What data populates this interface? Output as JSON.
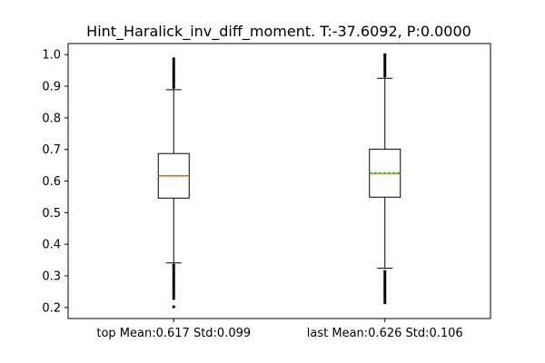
{
  "chart_data": {
    "type": "boxplot",
    "title": "Hint_Haralick_inv_diff_moment. T:-37.6092, P:0.0000",
    "xlabel": "",
    "ylabel": "",
    "ylim": [
      0.165,
      1.035
    ],
    "yticks": [
      0.2,
      0.3,
      0.4,
      0.5,
      0.6,
      0.7,
      0.8,
      0.9,
      1.0
    ],
    "ytick_labels": [
      "0.2",
      "0.3",
      "0.4",
      "0.5",
      "0.6",
      "0.7",
      "0.8",
      "0.9",
      "1.0"
    ],
    "grid": false,
    "legend": false,
    "colors": {
      "box": "#000000",
      "median": "#ff7f0e",
      "mean": "#2ca02c",
      "outlier": "#000000"
    },
    "categories": [
      "top Mean:0.617 Std:0.099",
      "last Mean:0.626 Std:0.106"
    ],
    "boxes": [
      {
        "q1": 0.546,
        "median": 0.616,
        "mean": 0.617,
        "q3": 0.687,
        "whisker_low": 0.341,
        "whisker_high": 0.889,
        "outliers": [
          0.202,
          0.228,
          0.236,
          0.243,
          0.25,
          0.257,
          0.264,
          0.271,
          0.278,
          0.285,
          0.292,
          0.299,
          0.306,
          0.313,
          0.32,
          0.327,
          0.334,
          0.896,
          0.903,
          0.91,
          0.917,
          0.924,
          0.931,
          0.938,
          0.945,
          0.952,
          0.959,
          0.966,
          0.973,
          0.98,
          0.987
        ]
      },
      {
        "q1": 0.549,
        "median": 0.623,
        "mean": 0.626,
        "q3": 0.701,
        "whisker_low": 0.324,
        "whisker_high": 0.925,
        "outliers": [
          0.215,
          0.222,
          0.23,
          0.237,
          0.244,
          0.251,
          0.258,
          0.265,
          0.272,
          0.279,
          0.286,
          0.293,
          0.3,
          0.307,
          0.314,
          0.932,
          0.939,
          0.946,
          0.953,
          0.96,
          0.967,
          0.974,
          0.981,
          0.988,
          0.995,
          1.0
        ]
      }
    ]
  }
}
